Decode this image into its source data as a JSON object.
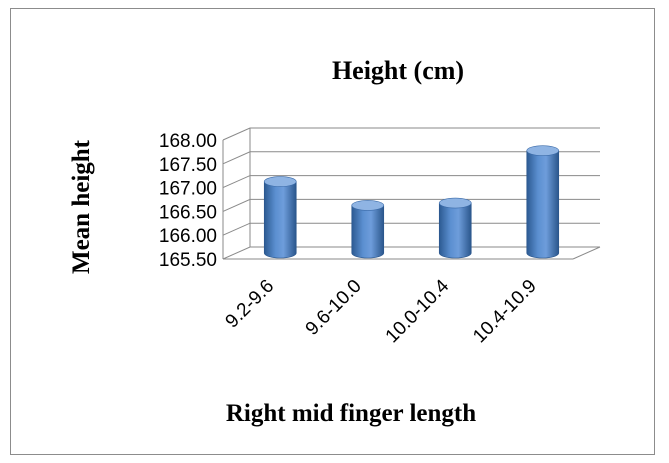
{
  "chart_data": {
    "type": "bar",
    "style": "3d-cylinder",
    "title": "Height (cm)",
    "xlabel": "Right mid finger length",
    "ylabel": "Mean height",
    "categories": [
      "9.2-9.6",
      "9.6-10.0",
      "10.0-10.4",
      "10.4-10.9"
    ],
    "values": [
      167.0,
      166.5,
      166.55,
      167.65
    ],
    "ylim": [
      165.5,
      168.0
    ],
    "yticks": [
      "168.00",
      "167.50",
      "167.00",
      "166.50",
      "166.00",
      "165.50"
    ],
    "grid": true,
    "legend": "none",
    "colors": {
      "bar": "#4f81bd",
      "bar_dark": "#2c5a92",
      "bar_light": "#8fb4e3",
      "grid": "#8a8a8a"
    }
  }
}
